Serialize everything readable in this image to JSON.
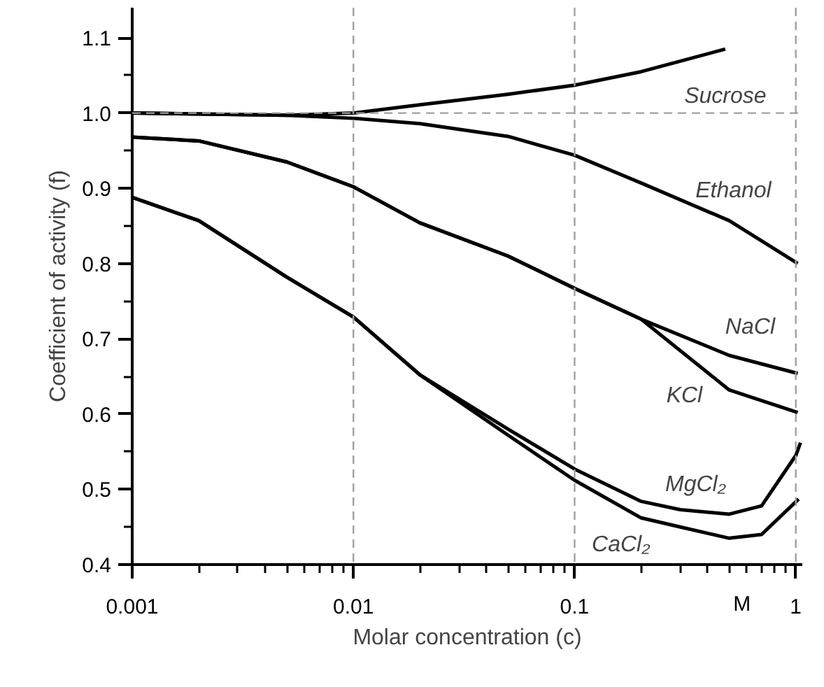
{
  "chart_data": {
    "type": "line",
    "xlabel": "Molar concentration (c)",
    "ylabel": "Coefficient of activity (f)",
    "log": "x",
    "xlim": [
      0.001,
      1.07
    ],
    "ylim": [
      0.4,
      1.14
    ],
    "xticks": [
      0.001,
      {
        "value": 0.002,
        "label": null
      },
      {
        "value": 0.003,
        "label": null
      },
      {
        "value": 0.004,
        "label": null
      },
      {
        "value": 0.005,
        "label": null
      },
      {
        "value": 0.006,
        "label": null
      },
      {
        "value": 0.007,
        "label": null
      },
      {
        "value": 0.008,
        "label": null
      },
      {
        "value": 0.009,
        "label": null
      },
      0.01,
      {
        "value": 0.02,
        "label": null
      },
      {
        "value": 0.03,
        "label": null
      },
      {
        "value": 0.04,
        "label": null
      },
      {
        "value": 0.05,
        "label": null
      },
      {
        "value": 0.06,
        "label": null
      },
      {
        "value": 0.07,
        "label": null
      },
      {
        "value": 0.08,
        "label": null
      },
      {
        "value": 0.09,
        "label": null
      },
      0.1,
      {
        "value": 0.2,
        "label": null
      },
      {
        "value": 0.3,
        "label": null
      },
      {
        "value": 0.4,
        "label": null
      },
      {
        "value": 0.5,
        "label": null
      },
      {
        "value": 0.6,
        "label": null
      },
      {
        "value": 0.7,
        "label": null
      },
      {
        "value": 0.8,
        "label": null
      },
      {
        "value": 0.9,
        "label": null
      },
      1
    ],
    "yticks": [
      {
        "value": 0.4,
        "label": "0.4"
      },
      {
        "value": 0.45,
        "label": null
      },
      {
        "value": 0.5,
        "label": "0.5"
      },
      {
        "value": 0.55,
        "label": null
      },
      {
        "value": 0.6,
        "label": "0.6"
      },
      {
        "value": 0.65,
        "label": null
      },
      {
        "value": 0.7,
        "label": "0.7"
      },
      {
        "value": 0.75,
        "label": null
      },
      {
        "value": 0.8,
        "label": "0.8"
      },
      {
        "value": 0.85,
        "label": null
      },
      {
        "value": 0.9,
        "label": "0.9"
      },
      {
        "value": 0.95,
        "label": null
      },
      {
        "value": 1.0,
        "label": "1.0"
      },
      {
        "value": 1.05,
        "label": null
      },
      {
        "value": 1.1,
        "label": "1.1"
      }
    ],
    "line_style": "solid",
    "grid": false,
    "marker": "none",
    "series": [
      {
        "name": "Sucrose",
        "color": "#000000",
        "x": [
          0.001,
          0.005,
          0.01,
          0.02,
          0.05,
          0.1,
          0.2,
          0.48
        ],
        "values": [
          1.0,
          0.997,
          1.0,
          1.011,
          1.025,
          1.037,
          1.055,
          1.085
        ]
      },
      {
        "name": "Ethanol",
        "color": "#000000",
        "x": [
          0.001,
          0.005,
          0.01,
          0.02,
          0.05,
          0.1,
          0.2,
          0.5,
          1.02
        ],
        "values": [
          1.0,
          0.997,
          0.993,
          0.986,
          0.969,
          0.944,
          0.907,
          0.857,
          0.8
        ]
      },
      {
        "name": "NaCl",
        "color": "#000000",
        "x": [
          0.001,
          0.002,
          0.005,
          0.01,
          0.02,
          0.05,
          0.1,
          0.2,
          0.5,
          1.02
        ],
        "values": [
          0.968,
          0.963,
          0.935,
          0.902,
          0.854,
          0.81,
          0.767,
          0.726,
          0.678,
          0.654
        ]
      },
      {
        "name": "KCl",
        "color": "#000000",
        "x": [
          0.001,
          0.002,
          0.005,
          0.01,
          0.02,
          0.05,
          0.1,
          0.2,
          0.5,
          1.02
        ],
        "values": [
          0.968,
          0.963,
          0.935,
          0.902,
          0.854,
          0.81,
          0.767,
          0.726,
          0.632,
          0.602
        ]
      },
      {
        "name": "MgCl₂",
        "color": "#000000",
        "x": [
          0.001,
          0.002,
          0.005,
          0.01,
          0.02,
          0.05,
          0.1,
          0.2,
          0.3,
          0.5,
          0.7,
          1.0,
          1.05
        ],
        "values": [
          0.888,
          0.857,
          0.782,
          0.729,
          0.652,
          0.58,
          0.527,
          0.484,
          0.473,
          0.467,
          0.478,
          0.545,
          0.562
        ]
      },
      {
        "name": "CaCl₂",
        "color": "#000000",
        "x": [
          0.001,
          0.002,
          0.005,
          0.01,
          0.02,
          0.05,
          0.1,
          0.2,
          0.3,
          0.5,
          0.7,
          1.03
        ],
        "values": [
          0.888,
          0.857,
          0.782,
          0.729,
          0.652,
          0.572,
          0.512,
          0.462,
          0.45,
          0.435,
          0.44,
          0.487
        ]
      }
    ],
    "ref_lines": [
      {
        "axis": "x",
        "value": 0.01,
        "color": "#a0a0a0",
        "line_style": "dashed"
      },
      {
        "axis": "x",
        "value": 0.1,
        "color": "#a0a0a0",
        "line_style": "dashed"
      },
      {
        "axis": "x",
        "value": 1,
        "color": "#a0a0a0",
        "line_style": "dashed"
      },
      {
        "axis": "y",
        "value": 1.0,
        "color": "#a0a0a0",
        "line_style": "dashed"
      }
    ],
    "annotations": [
      "M"
    ]
  }
}
